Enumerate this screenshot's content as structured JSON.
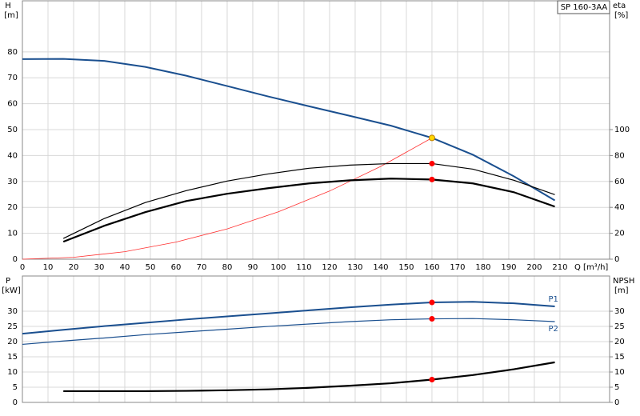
{
  "chart_data": [
    {
      "type": "line",
      "legend_label": "SP 160-3AA",
      "ylabel": "H",
      "yunit": "[m]",
      "y2label": "eta",
      "y2unit": "[%]",
      "xlabel": "Q [m³/h]",
      "xlim": [
        0,
        229.4
      ],
      "xticks": [
        0,
        10,
        20,
        30,
        40,
        50,
        60,
        70,
        80,
        90,
        100,
        110,
        120,
        130,
        140,
        150,
        160,
        170,
        180,
        190,
        200,
        210
      ],
      "ylim": [
        0,
        99.7
      ],
      "yticks": [
        0,
        10,
        20,
        30,
        40,
        50,
        60,
        70,
        80
      ],
      "y2lim": [
        0,
        199.4
      ],
      "y2ticks": [
        0,
        20,
        40,
        60,
        80,
        100
      ],
      "grid": true,
      "series": [
        {
          "color": "#1a4f8f",
          "width": 2,
          "x": [
            0,
            16,
            32,
            48,
            64,
            80,
            96,
            112,
            128,
            144,
            160,
            176,
            192,
            208
          ],
          "values": [
            77.2,
            77.3,
            76.5,
            74.2,
            70.8,
            66.8,
            62.8,
            59,
            55.3,
            51.5,
            46.8,
            40.3,
            32,
            22.7
          ]
        },
        {
          "color": "#ff3030",
          "width": 0.8,
          "x": [
            0,
            20,
            40,
            60,
            80,
            100,
            120,
            140,
            160
          ],
          "values": [
            0,
            0.73,
            2.9,
            6.6,
            11.7,
            18.3,
            26.3,
            35.8,
            46.8
          ]
        },
        {
          "color": "#000000",
          "width": 1.2,
          "axis": "y2",
          "x": [
            16,
            32,
            48,
            64,
            80,
            96,
            112,
            128,
            144,
            160,
            176,
            192,
            208
          ],
          "values": [
            16,
            31.4,
            43.7,
            52.9,
            60.3,
            65.8,
            70.2,
            72.6,
            73.8,
            73.8,
            69.5,
            60.9,
            49.8
          ]
        },
        {
          "color": "#000000",
          "width": 2.2,
          "axis": "y2",
          "x": [
            16,
            32,
            48,
            64,
            80,
            96,
            112,
            128,
            144,
            160,
            176,
            192,
            208
          ],
          "values": [
            13.5,
            25.8,
            36.3,
            44.9,
            50.5,
            54.8,
            58.5,
            60.9,
            62.2,
            61.5,
            58.5,
            51.7,
            40.6
          ]
        },
        {
          "color": "#ffd700",
          "marker": true,
          "x": [
            160
          ],
          "values": [
            46.8
          ]
        },
        {
          "color": "#ff0000",
          "marker": true,
          "axis": "y2",
          "x": [
            160,
            160
          ],
          "values": [
            73.8,
            61.5
          ]
        }
      ]
    },
    {
      "type": "line",
      "ylabel": "P",
      "yunit": "[kW]",
      "y2label": "NPSH",
      "y2unit": "[m]",
      "xlim": [
        0,
        229.4
      ],
      "ylim": [
        0,
        41.6
      ],
      "yticks": [
        0,
        5,
        10,
        15,
        20,
        25,
        30
      ],
      "y2lim": [
        0,
        41.6
      ],
      "y2ticks": [
        0,
        5,
        10,
        15,
        20,
        25,
        30
      ],
      "grid": true,
      "series": [
        {
          "name": "P1",
          "color": "#1a4f8f",
          "width": 2,
          "x": [
            0,
            16,
            32,
            48,
            64,
            80,
            96,
            112,
            128,
            144,
            160,
            176,
            192,
            208
          ],
          "values": [
            22.6,
            23.9,
            25.1,
            26.2,
            27.3,
            28.3,
            29.3,
            30.3,
            31.3,
            32.2,
            32.9,
            33.1,
            32.6,
            31.6
          ]
        },
        {
          "name": "P2",
          "color": "#1a4f8f",
          "width": 1.2,
          "x": [
            0,
            16,
            32,
            48,
            64,
            80,
            96,
            112,
            128,
            144,
            160,
            176,
            192,
            208
          ],
          "values": [
            19.1,
            20.2,
            21.2,
            22.3,
            23.2,
            24.1,
            25,
            25.8,
            26.6,
            27.2,
            27.5,
            27.6,
            27.2,
            26.6
          ]
        },
        {
          "color": "#000000",
          "width": 2.2,
          "axis": "y2",
          "x": [
            16,
            32,
            48,
            64,
            80,
            96,
            112,
            128,
            144,
            160,
            176,
            192,
            208
          ],
          "values": [
            3.7,
            3.7,
            3.7,
            3.8,
            4,
            4.3,
            4.8,
            5.5,
            6.3,
            7.5,
            9,
            10.9,
            13.2
          ]
        },
        {
          "color": "#ff0000",
          "marker": true,
          "x": [
            160,
            160
          ],
          "values": [
            32.9,
            27.5
          ]
        },
        {
          "color": "#ff0000",
          "marker": true,
          "axis": "y2",
          "x": [
            160
          ],
          "values": [
            7.5
          ]
        }
      ]
    }
  ]
}
